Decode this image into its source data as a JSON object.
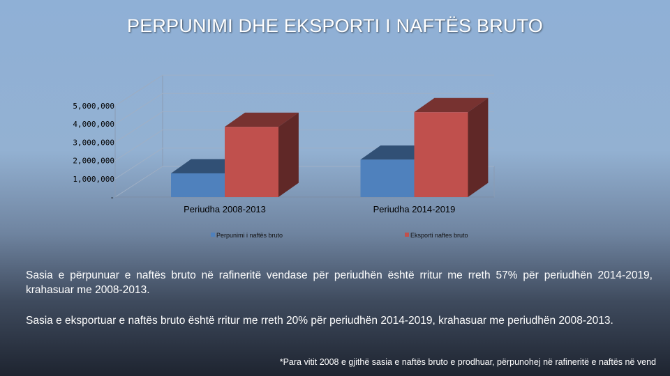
{
  "slide": {
    "title": "PERPUNIMI DHE EKSPORTI I NAFTËS BRUTO",
    "paragraph_1": "Sasia e përpunuar e naftës bruto në rafineritë vendase për periudhën është rritur me rreth 57% për periudhën 2014-2019, krahasuar me 2008-2013.",
    "paragraph_2": "Sasia e eksportuar e naftës bruto është rritur me rreth 20% për periudhën 2014-2019, krahasuar me periudhën 2008-2013.",
    "footnote": "*Para vitit 2008 e gjithë sasia e naftës bruto e prodhuar, përpunohej në rafineritë e naftës në vend"
  },
  "colors": {
    "series_1": "#4f81bd",
    "series_2": "#c0504d"
  },
  "chart_data": {
    "type": "bar",
    "categories": [
      "Periudha 2008-2013",
      "Periudha 2014-2019"
    ],
    "series": [
      {
        "name": "Perpunimi i naftës bruto",
        "values": [
          1300000,
          2050000
        ]
      },
      {
        "name": "Eksporti naftes bruto",
        "values": [
          3850000,
          4650000
        ]
      }
    ],
    "yticks": [
      "-",
      "1,000,000",
      "2,000,000",
      "3,000,000",
      "4,000,000",
      "5,000,000"
    ],
    "ylim": [
      0,
      5000000
    ],
    "grid": true,
    "legend": "bottom",
    "title": "",
    "xlabel": "",
    "ylabel": ""
  }
}
